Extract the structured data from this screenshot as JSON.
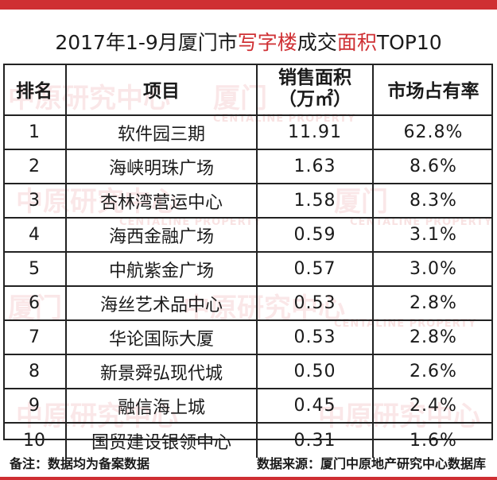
{
  "title": {
    "part1": "2017年1-9月厦门市",
    "highlight1": "写字楼",
    "part2": "成交",
    "highlight2": "面积",
    "part3": "TOP10"
  },
  "headers": {
    "rank": "排名",
    "project": "项目",
    "area_line1": "销售面积",
    "area_line2": "（万㎡）",
    "share": "市场占有率"
  },
  "rows": [
    {
      "rank": "1",
      "project": "软件园三期",
      "area": "11.91",
      "share": "62.8%"
    },
    {
      "rank": "2",
      "project": "海峡明珠广场",
      "area": "1.63",
      "share": "8.6%"
    },
    {
      "rank": "3",
      "project": "杏林湾营运中心",
      "area": "1.58",
      "share": "8.3%"
    },
    {
      "rank": "4",
      "project": "海西金融广场",
      "area": "0.59",
      "share": "3.1%"
    },
    {
      "rank": "5",
      "project": "中航紫金广场",
      "area": "0.57",
      "share": "3.0%"
    },
    {
      "rank": "6",
      "project": "海丝艺术品中心",
      "area": "0.53",
      "share": "2.8%"
    },
    {
      "rank": "7",
      "project": "华论国际大厦",
      "area": "0.53",
      "share": "2.8%"
    },
    {
      "rank": "8",
      "project": "新景舜弘现代城",
      "area": "0.50",
      "share": "2.6%"
    },
    {
      "rank": "9",
      "project": "融信海上城",
      "area": "0.45",
      "share": "2.4%"
    },
    {
      "rank": "10",
      "project": "国贸建设银领中心",
      "area": "0.31",
      "share": "1.6%"
    }
  ],
  "footer": {
    "note": "备注：数据均为备案数据",
    "source": "数据来源：厦门中原地产研究中心数据库"
  },
  "watermark": {
    "text1": "中原研究中心",
    "text2": "厦门",
    "text3": "CENTALINE PROPERTY"
  },
  "colors": {
    "accent": "#cf2f33",
    "border": "#222222"
  }
}
